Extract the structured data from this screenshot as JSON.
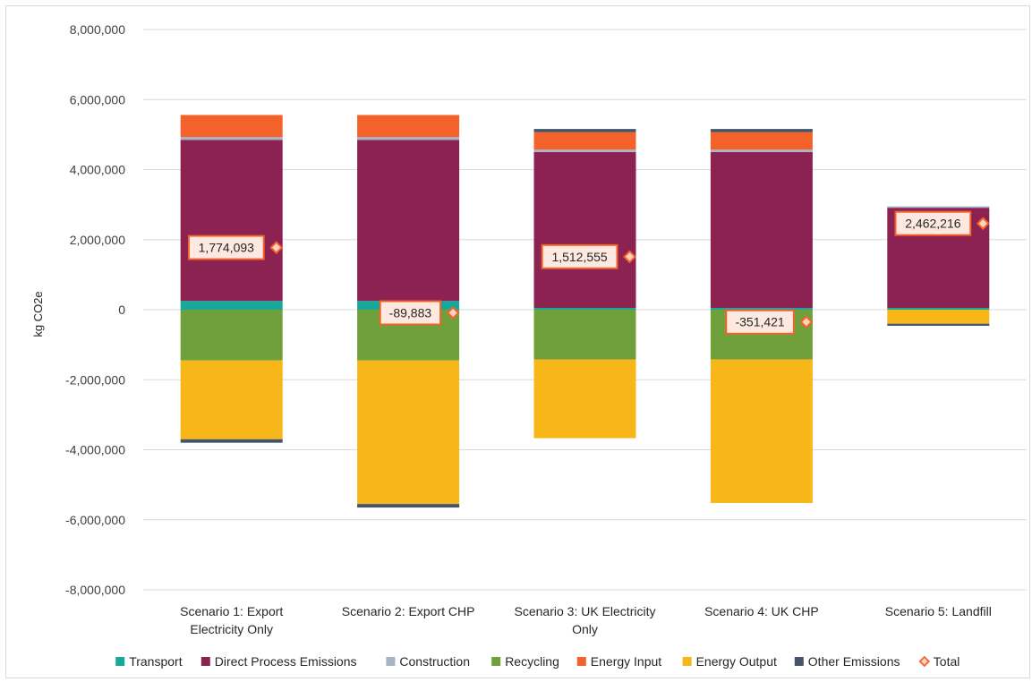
{
  "chart_data": {
    "type": "bar",
    "stacked": true,
    "ylabel": "kg CO2e",
    "ylim": [
      -8000000,
      8000000
    ],
    "yticks": [
      8000000,
      6000000,
      4000000,
      2000000,
      0,
      -2000000,
      -4000000,
      -6000000,
      -8000000
    ],
    "ytick_labels": [
      "8,000,000",
      "6,000,000",
      "4,000,000",
      "2,000,000",
      "0",
      "-2,000,000",
      "-4,000,000",
      "-6,000,000",
      "-8,000,000"
    ],
    "grid": true,
    "legend_position": "bottom",
    "categories": [
      [
        "Scenario 1: Export",
        "Electricity Only"
      ],
      [
        "Scenario 2: Export CHP"
      ],
      [
        "Scenario 3: UK Electricity",
        "Only"
      ],
      [
        "Scenario 4: UK CHP"
      ],
      [
        "Scenario 5: Landfill"
      ]
    ],
    "series": [
      {
        "name": "Transport",
        "color": "#17a89a",
        "values": [
          250000,
          250000,
          50000,
          50000,
          50000
        ]
      },
      {
        "name": "Direct Process Emissions",
        "color": "#8b2252",
        "values": [
          4600000,
          4600000,
          4450000,
          4450000,
          2860000
        ]
      },
      {
        "name": "Construction",
        "color": "#a5b3c6",
        "values": [
          80000,
          80000,
          70000,
          70000,
          40000
        ]
      },
      {
        "name": "Recycling",
        "color": "#70a03c",
        "values": [
          -1450000,
          -1450000,
          -1420000,
          -1420000,
          0
        ]
      },
      {
        "name": "Energy Input",
        "color": "#f4622b",
        "values": [
          630000,
          630000,
          500000,
          500000,
          0
        ]
      },
      {
        "name": "Energy Output",
        "color": "#f7b718",
        "values": [
          -2250000,
          -4100000,
          -2250000,
          -4100000,
          -400000
        ]
      },
      {
        "name": "Other Emissions",
        "color": "#44546a",
        "values": [
          -100000,
          -100000,
          90000,
          90000,
          -60000
        ]
      }
    ],
    "total": {
      "name": "Total",
      "color": "#f4622b",
      "values": [
        1774093,
        -89883,
        1512555,
        -351421,
        2462216
      ],
      "labels": [
        "1,774,093",
        "-89,883",
        "1,512,555",
        "-351,421",
        "2,462,216"
      ]
    }
  }
}
